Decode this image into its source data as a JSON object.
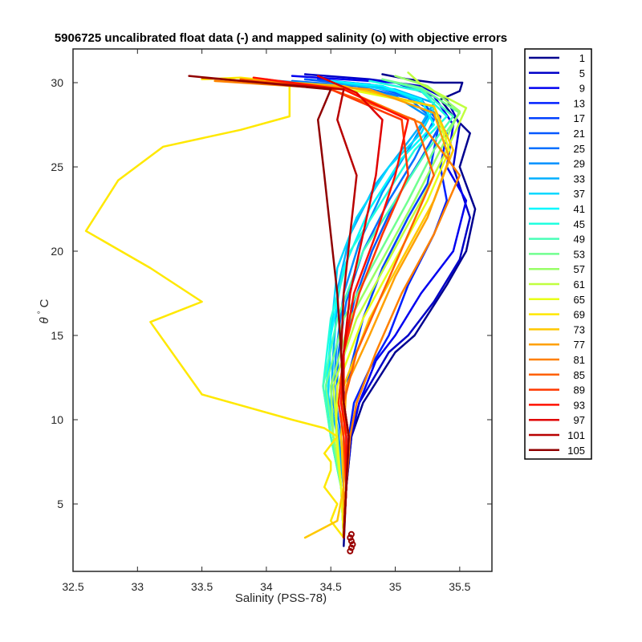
{
  "chart_data": {
    "type": "line",
    "title": "5906725 uncalibrated float data (-) and mapped salinity (o) with objective errors",
    "xlabel": "Salinity (PSS-78)",
    "ylabel_symbol": "θ",
    "ylabel_unit": "C",
    "xlim": [
      32.5,
      35.75
    ],
    "ylim": [
      1,
      32
    ],
    "xticks": [
      32.5,
      33,
      33.5,
      34,
      34.5,
      35,
      35.5
    ],
    "yticks": [
      5,
      10,
      15,
      20,
      25,
      30
    ],
    "grid": false,
    "legend_position": "outside-right",
    "legend_colors": [
      "#00008f",
      "#0000c8",
      "#0000f0",
      "#0020ff",
      "#0040ff",
      "#0058ff",
      "#0070ff",
      "#0090ff",
      "#00b0ff",
      "#00d8ff",
      "#00f8ff",
      "#20ffdf",
      "#48ffb7",
      "#70ff8f",
      "#98ff67",
      "#c0ff3f",
      "#e8ff17",
      "#ffe800",
      "#ffc800",
      "#ffa000",
      "#ff8000",
      "#ff6000",
      "#ff3800",
      "#ff1000",
      "#e00000",
      "#b80000",
      "#900000"
    ],
    "series": [
      {
        "name": "1",
        "x": [
          34.6,
          34.62,
          34.66,
          34.75,
          35.0,
          35.15,
          35.4,
          35.55,
          35.62,
          35.5,
          35.58,
          35.45,
          35.35,
          35.5,
          35.52,
          35.3,
          35.1,
          34.9
        ],
        "y": [
          2.5,
          6,
          9,
          11,
          14,
          15,
          18,
          20,
          22.5,
          25,
          27,
          28,
          29,
          29.5,
          30,
          30,
          30.2,
          30.5
        ]
      },
      {
        "name": "5",
        "x": [
          34.6,
          34.62,
          34.66,
          34.72,
          34.95,
          35.1,
          35.3,
          35.5,
          35.58,
          35.45,
          35.5,
          35.4,
          35.2,
          34.8,
          34.3
        ],
        "y": [
          3,
          6,
          9,
          11,
          14,
          15,
          17,
          19.5,
          22,
          25,
          27.5,
          29,
          29.8,
          30.2,
          30.5
        ]
      },
      {
        "name": "9",
        "x": [
          34.6,
          34.62,
          34.65,
          34.72,
          34.85,
          35.0,
          35.2,
          35.45,
          35.55,
          35.4,
          35.45,
          35.3,
          35.0,
          34.2
        ],
        "y": [
          3,
          6,
          9,
          11,
          13.5,
          15,
          17.5,
          20,
          23,
          25,
          27.5,
          29.2,
          30,
          30.4
        ]
      },
      {
        "name": "13",
        "x": [
          34.6,
          34.62,
          34.64,
          34.68,
          34.8,
          34.95,
          35.1,
          35.3,
          35.4,
          35.35,
          35.4,
          35.2,
          34.9,
          34.4
        ],
        "y": [
          3,
          6,
          9,
          11,
          13,
          15,
          18,
          21,
          23,
          25,
          27,
          29,
          29.8,
          30.2
        ]
      },
      {
        "name": "17",
        "x": [
          34.6,
          34.62,
          34.62,
          34.6,
          34.65,
          34.75,
          34.9,
          35.1,
          35.25,
          35.3,
          35.35,
          35.1,
          34.8,
          34.3
        ],
        "y": [
          3,
          6,
          9,
          11,
          13,
          16,
          19,
          22,
          24,
          26,
          28,
          29.2,
          29.9,
          30.2
        ]
      },
      {
        "name": "21",
        "x": [
          34.6,
          34.62,
          34.6,
          34.56,
          34.6,
          34.68,
          34.82,
          35.0,
          35.2,
          35.35,
          35.2,
          34.8,
          34.3
        ],
        "y": [
          3,
          6,
          9,
          11,
          14,
          17,
          20,
          23,
          25.5,
          27.5,
          29,
          29.8,
          30.2
        ]
      },
      {
        "name": "25",
        "x": [
          34.6,
          34.6,
          34.58,
          34.54,
          34.56,
          34.62,
          34.75,
          34.95,
          35.15,
          35.3,
          35.1,
          34.7,
          34.2
        ],
        "y": [
          3,
          6,
          9,
          11,
          14,
          17,
          20,
          23,
          25.5,
          27.8,
          29.1,
          29.8,
          30.1
        ]
      },
      {
        "name": "29",
        "x": [
          34.6,
          34.6,
          34.56,
          34.52,
          34.54,
          34.6,
          34.72,
          34.9,
          35.1,
          35.25,
          35.0,
          34.6,
          34.1
        ],
        "y": [
          3,
          6,
          9,
          11,
          14,
          17.5,
          20.5,
          23.5,
          26,
          28,
          29.2,
          29.8,
          30.1
        ]
      },
      {
        "name": "33",
        "x": [
          34.6,
          34.6,
          34.55,
          34.5,
          34.52,
          34.56,
          34.65,
          34.85,
          35.05,
          35.2,
          35.3,
          35.0,
          34.5
        ],
        "y": [
          3,
          6,
          9,
          11,
          14,
          18,
          21,
          24,
          26,
          27.5,
          28.8,
          29.6,
          30
        ]
      },
      {
        "name": "37",
        "x": [
          34.6,
          34.58,
          34.52,
          34.48,
          34.5,
          34.55,
          34.7,
          34.95,
          35.2,
          35.3,
          35.0,
          34.6
        ],
        "y": [
          3,
          6,
          9,
          11.5,
          15,
          19,
          22,
          25,
          27,
          28.5,
          29.5,
          30
        ]
      },
      {
        "name": "41",
        "x": [
          34.6,
          34.58,
          34.5,
          34.46,
          34.5,
          34.6,
          34.8,
          35.05,
          35.3,
          35.2,
          34.9,
          34.5
        ],
        "y": [
          3,
          6,
          9,
          11.5,
          15,
          19,
          22.5,
          25.5,
          27.5,
          29,
          29.8,
          30.1
        ]
      },
      {
        "name": "45",
        "x": [
          34.6,
          34.58,
          34.5,
          34.44,
          34.5,
          34.65,
          34.9,
          35.15,
          35.4,
          35.2,
          34.8
        ],
        "y": [
          3,
          6,
          9,
          12,
          16,
          20,
          23,
          26,
          28,
          29.5,
          30.1
        ]
      },
      {
        "name": "49",
        "x": [
          34.6,
          34.58,
          34.5,
          34.44,
          34.55,
          34.75,
          35.0,
          35.25,
          35.45,
          35.2,
          34.9
        ],
        "y": [
          3,
          6,
          9,
          12,
          16,
          20,
          23,
          26,
          28,
          29.6,
          30.2
        ]
      },
      {
        "name": "53",
        "x": [
          34.6,
          34.58,
          34.52,
          34.46,
          34.6,
          34.85,
          35.1,
          35.3,
          35.5,
          35.2,
          34.9
        ],
        "y": [
          3,
          6,
          9,
          12,
          16,
          19.5,
          23,
          26,
          28.2,
          29.7,
          30.2
        ]
      },
      {
        "name": "57",
        "x": [
          34.6,
          34.58,
          34.52,
          34.5,
          34.65,
          34.9,
          35.15,
          35.35,
          35.5,
          35.25,
          35.0
        ],
        "y": [
          3,
          6,
          9,
          12,
          16,
          19.5,
          23,
          26,
          28.3,
          29.8,
          30.4
        ]
      },
      {
        "name": "61",
        "x": [
          34.6,
          34.58,
          34.55,
          34.52,
          34.7,
          34.95,
          35.2,
          35.4,
          35.55,
          35.2,
          35.1
        ],
        "y": [
          3,
          6,
          9,
          12,
          16,
          19.5,
          23,
          26,
          28.5,
          29.9,
          30.6
        ]
      },
      {
        "name": "65",
        "x": [
          34.6,
          34.58,
          34.54,
          34.55,
          34.75,
          35.0,
          35.25,
          35.42,
          35.3,
          34.5,
          33.6
        ],
        "y": [
          3,
          6,
          9,
          12,
          16,
          19.5,
          23,
          26,
          28.6,
          29.8,
          30.1
        ]
      },
      {
        "name": "69",
        "x": [
          34.6,
          34.5,
          34.55,
          34.45,
          34.5,
          34.5,
          34.45,
          34.5,
          34.55,
          34.45,
          34.2,
          33.5,
          33.1,
          33.5,
          33.1,
          32.6,
          32.85,
          33.2,
          33.8,
          34.18,
          34.18,
          33.8,
          33.5
        ],
        "y": [
          3,
          4,
          5,
          6,
          7,
          7.5,
          8,
          8.5,
          9,
          9.5,
          10,
          11.5,
          15.8,
          17,
          19,
          21.2,
          24.2,
          26.2,
          27.2,
          28,
          30,
          30.3,
          30.2
        ]
      },
      {
        "name": "73",
        "x": [
          34.3,
          34.55,
          34.6,
          34.58,
          34.6,
          34.8,
          35.05,
          35.3,
          35.45,
          35.3,
          34.6,
          33.8
        ],
        "y": [
          3,
          4,
          6,
          9,
          12,
          16,
          19.5,
          23,
          26,
          28.6,
          29.8,
          30.2
        ]
      },
      {
        "name": "77",
        "x": [
          34.6,
          34.6,
          34.6,
          34.62,
          34.8,
          35.0,
          35.25,
          35.42,
          35.3,
          34.8,
          34.0
        ],
        "y": [
          3,
          6,
          9,
          12,
          15,
          18.5,
          22,
          25.5,
          28.2,
          29.6,
          30.1
        ]
      },
      {
        "name": "81",
        "x": [
          34.6,
          34.62,
          34.65,
          34.7,
          34.85,
          35.05,
          35.3,
          35.5,
          35.2,
          34.6,
          33.6
        ],
        "y": [
          3,
          6,
          9,
          11,
          14,
          17.5,
          21,
          24.5,
          27.6,
          29.6,
          30.1
        ]
      },
      {
        "name": "85",
        "x": [
          34.6,
          34.62,
          34.62,
          34.6,
          34.7,
          34.9,
          35.1,
          35.3,
          35.15,
          34.5,
          33.8
        ],
        "y": [
          3,
          6,
          9,
          11,
          14,
          17.5,
          21,
          24.5,
          27.8,
          29.6,
          30.2
        ]
      },
      {
        "name": "89",
        "x": [
          34.6,
          34.62,
          34.6,
          34.56,
          34.6,
          34.72,
          34.9,
          35.1,
          35.05,
          34.5,
          34.0
        ],
        "y": [
          3,
          6,
          9,
          11,
          14,
          17.5,
          21,
          24.5,
          27.8,
          29.6,
          30.2
        ]
      },
      {
        "name": "93",
        "x": [
          34.6,
          34.62,
          34.62,
          34.58,
          34.6,
          34.68,
          34.85,
          35.0,
          35.1,
          34.6,
          33.9
        ],
        "y": [
          3,
          6,
          9,
          11,
          14,
          17.5,
          21,
          24.5,
          27.8,
          29.6,
          30.3
        ]
      },
      {
        "name": "97",
        "x": [
          34.6,
          34.62,
          34.64,
          34.6,
          34.6,
          34.65,
          34.75,
          34.85,
          34.9,
          34.7,
          34.4
        ],
        "y": [
          3,
          6,
          9,
          11,
          14,
          17.5,
          21,
          24.5,
          27.8,
          29.4,
          30.4
        ]
      },
      {
        "name": "101",
        "x": [
          34.6,
          34.62,
          34.64,
          34.6,
          34.58,
          34.6,
          34.65,
          34.7,
          34.55,
          34.6,
          33.5
        ],
        "y": [
          3,
          6,
          9,
          11,
          14,
          17.5,
          21,
          24.5,
          27.8,
          29.6,
          30.3
        ]
      },
      {
        "name": "105",
        "x": [
          34.6,
          34.62,
          34.64,
          34.6,
          34.58,
          34.55,
          34.5,
          34.45,
          34.4,
          34.5,
          33.4
        ],
        "y": [
          3,
          6,
          9,
          11,
          14,
          17.5,
          21,
          24.5,
          27.8,
          29.6,
          30.4
        ]
      }
    ],
    "mapped_salinity": {
      "marker": "o",
      "color": "#990000",
      "x": [
        34.65,
        34.66,
        34.67,
        34.66,
        34.65,
        34.66
      ],
      "y": [
        2.2,
        2.4,
        2.6,
        2.8,
        3.0,
        3.2
      ]
    }
  }
}
